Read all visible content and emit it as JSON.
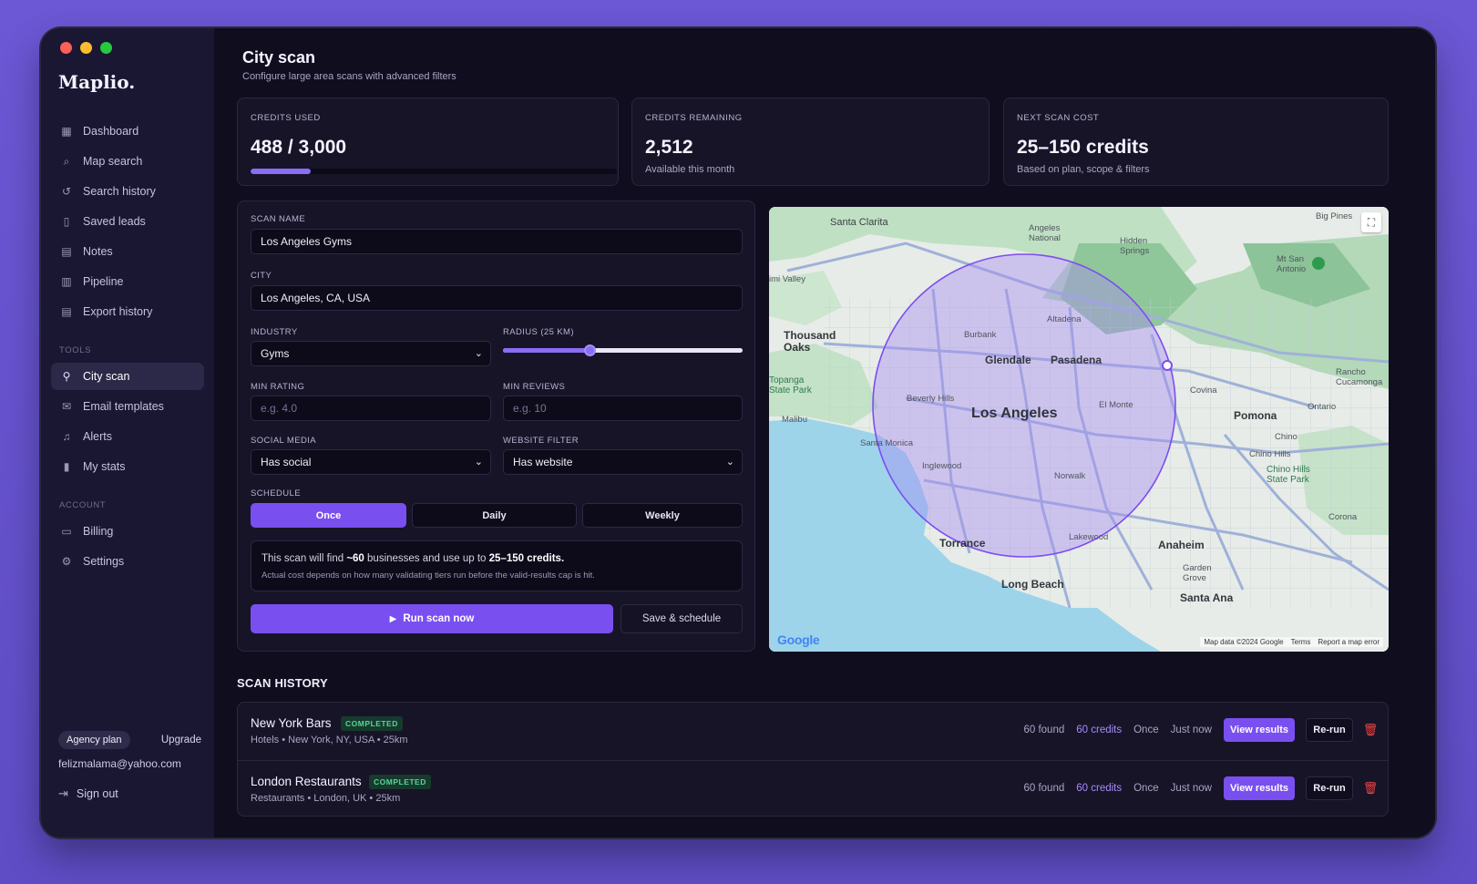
{
  "app": {
    "logo": "Maplio."
  },
  "sidebar": {
    "items": [
      {
        "label": "Dashboard",
        "icon": "grid-icon"
      },
      {
        "label": "Map search",
        "icon": "search-icon"
      },
      {
        "label": "Search history",
        "icon": "history-icon"
      },
      {
        "label": "Saved leads",
        "icon": "bookmark-icon"
      },
      {
        "label": "Notes",
        "icon": "note-icon"
      },
      {
        "label": "Pipeline",
        "icon": "pipeline-icon"
      },
      {
        "label": "Export history",
        "icon": "export-icon"
      }
    ],
    "tools_label": "TOOLS",
    "tools": [
      {
        "label": "City scan",
        "icon": "city-scan-icon",
        "active": true
      },
      {
        "label": "Email templates",
        "icon": "mail-icon"
      },
      {
        "label": "Alerts",
        "icon": "bell-icon"
      },
      {
        "label": "My stats",
        "icon": "bar-chart-icon"
      }
    ],
    "account_label": "ACCOUNT",
    "account": [
      {
        "label": "Billing",
        "icon": "card-icon"
      },
      {
        "label": "Settings",
        "icon": "gear-icon"
      }
    ],
    "plan": "Agency plan",
    "upgrade": "Upgrade",
    "email": "felizmalama@yahoo.com",
    "signout": "Sign out"
  },
  "header": {
    "title": "City scan",
    "subtitle": "Configure large area scans with advanced filters"
  },
  "stats": {
    "used": {
      "label": "CREDITS USED",
      "value": "488 / 3,000",
      "progress": 0.163
    },
    "remaining": {
      "label": "CREDITS REMAINING",
      "value": "2,512",
      "sub": "Available this month"
    },
    "next": {
      "label": "NEXT SCAN COST",
      "value": "25–150 credits",
      "sub": "Based on plan, scope & filters"
    }
  },
  "form": {
    "scan_name_label": "SCAN NAME",
    "scan_name": "Los Angeles Gyms",
    "city_label": "CITY",
    "city": "Los Angeles, CA, USA",
    "industry_label": "INDUSTRY",
    "industry": "Gyms",
    "radius_label": "RADIUS (25 KM)",
    "radius_fraction": 0.36,
    "min_rating_label": "MIN RATING",
    "min_rating_placeholder": "e.g. 4.0",
    "min_reviews_label": "MIN REVIEWS",
    "min_reviews_placeholder": "e.g. 10",
    "social_label": "SOCIAL MEDIA",
    "social": "Has social",
    "website_label": "WEBSITE FILTER",
    "website": "Has website",
    "schedule_label": "SCHEDULE",
    "schedule_options": [
      "Once",
      "Daily",
      "Weekly"
    ],
    "schedule_selected": "Once",
    "info_prefix": "This scan will find ",
    "info_count": "~60",
    "info_mid": " businesses and use up to ",
    "info_credits": "25–150 credits.",
    "info_note": "Actual cost depends on how many validating tiers run before the valid-results cap is hit.",
    "run_label": "Run scan now",
    "save_label": "Save & schedule"
  },
  "map": {
    "labels": {
      "santa_clarita": "Santa Clarita",
      "angeles_national": "Angeles National",
      "hidden_springs": "Hidden Springs",
      "big_pines": "Big Pines",
      "mt_san_antonio": "Mt San Antonio",
      "simi_valley": "imi Valley",
      "thousand_oaks": "Thousand Oaks",
      "altadena": "Altadena",
      "burbank": "Burbank",
      "glendale": "Glendale",
      "pasadena": "Pasadena",
      "topanga": "Topanga State Park",
      "beverly_hills": "Beverly Hills",
      "los_angeles": "Los Angeles",
      "el_monte": "El Monte",
      "covina": "Covina",
      "rancho": "Rancho Cucamonga",
      "ontario": "Ontario",
      "pomona": "Pomona",
      "malibu": "Malibu",
      "santa_monica": "Santa Monica",
      "norwalk": "Norwalk",
      "chino": "Chino",
      "chino_hills": "Chino Hills",
      "chino_hills_sp": "Chino Hills State Park",
      "inglewood": "Inglewood",
      "torrance": "Torrance",
      "lakewood": "Lakewood",
      "anaheim": "Anaheim",
      "garden_grove": "Garden Grove",
      "long_beach": "Long Beach",
      "santa_ana": "Santa Ana",
      "corona": "Corona"
    },
    "google": "Google",
    "map_data": "Map data ©2024 Google",
    "terms": "Terms",
    "report": "Report a map error"
  },
  "history": {
    "title": "SCAN HISTORY",
    "rows": [
      {
        "name": "New York Bars",
        "status": "COMPLETED",
        "meta": "Hotels • New York, NY, USA • 25km",
        "found": "60 found",
        "credits": "60 credits",
        "freq": "Once",
        "when": "Just now",
        "view": "View results",
        "rerun": "Re-run"
      },
      {
        "name": "London Restaurants",
        "status": "COMPLETED",
        "meta": "Restaurants • London, UK • 25km",
        "found": "60 found",
        "credits": "60 credits",
        "freq": "Once",
        "when": "Just now",
        "view": "View results",
        "rerun": "Re-run"
      }
    ]
  },
  "colors": {
    "accent": "#7a4ff0",
    "background": "#0f0d1e",
    "sidebar": "#1a1732",
    "success": "#55d69a",
    "danger": "#ef4444"
  }
}
